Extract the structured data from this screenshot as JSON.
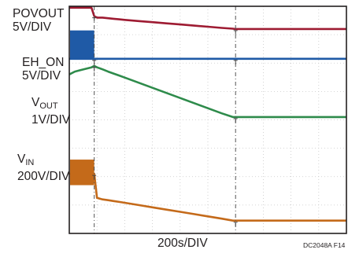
{
  "chart_data": {
    "type": "line",
    "xlabel": "200s/DIV",
    "figure_id": "DC2048A F14",
    "grid": true,
    "x_divisions": 10,
    "y_divisions": 8,
    "x": [
      0,
      0.2,
      0.4,
      0.6,
      0.8,
      0.9,
      1.0,
      1.2,
      1.4,
      1.6,
      1.8,
      2.0,
      2.5,
      3.0,
      3.5,
      4.0,
      4.5,
      5.0,
      5.5,
      5.9,
      6.0,
      6.5,
      7.0,
      7.5,
      8.0,
      8.5,
      9.0,
      9.5,
      10.0
    ],
    "series": [
      {
        "name": "POVOUT",
        "scale_label": "5V/DIV",
        "color": "#9e1b32",
        "values": [
          7.95,
          7.95,
          7.95,
          7.95,
          7.95,
          7.65,
          7.6,
          7.6,
          7.58,
          7.56,
          7.54,
          7.52,
          7.48,
          7.44,
          7.4,
          7.36,
          7.32,
          7.28,
          7.24,
          7.21,
          7.2,
          7.2,
          7.2,
          7.2,
          7.2,
          7.2,
          7.2,
          7.2,
          7.2
        ]
      },
      {
        "name": "EH_ON",
        "scale_label": "5V/DIV",
        "color": "#1f5aa6",
        "values": [
          6.15,
          6.15,
          6.15,
          6.15,
          6.15,
          6.15,
          6.15,
          6.15,
          6.15,
          6.15,
          6.15,
          6.15,
          6.15,
          6.15,
          6.15,
          6.15,
          6.15,
          6.15,
          6.15,
          6.15,
          6.15,
          6.15,
          6.15,
          6.15,
          6.15,
          6.15,
          6.15,
          6.15,
          6.15
        ],
        "burst": {
          "x": [
            0,
            0.9
          ],
          "y": [
            6.15,
            7.15
          ]
        }
      },
      {
        "name": "V_OUT",
        "scale_label": "1V/DIV",
        "color": "#2e8b4b",
        "values": [
          5.6,
          5.7,
          5.75,
          5.8,
          5.85,
          5.9,
          5.85,
          5.78,
          5.7,
          5.63,
          5.56,
          5.49,
          5.31,
          5.13,
          4.95,
          4.77,
          4.59,
          4.41,
          4.23,
          4.1,
          4.1,
          4.1,
          4.1,
          4.1,
          4.1,
          4.1,
          4.1,
          4.1,
          4.1
        ]
      },
      {
        "name": "V_IN",
        "scale_label": "200V/DIV",
        "color": "#c46a1a",
        "values": [
          2.1,
          2.1,
          2.1,
          2.1,
          2.1,
          2.1,
          1.25,
          1.2,
          1.17,
          1.14,
          1.11,
          1.08,
          1.0,
          0.92,
          0.84,
          0.76,
          0.68,
          0.6,
          0.52,
          0.45,
          0.45,
          0.45,
          0.45,
          0.45,
          0.45,
          0.45,
          0.45,
          0.45,
          0.45
        ],
        "burst": {
          "x": [
            0,
            0.9
          ],
          "y": [
            1.7,
            2.6
          ]
        }
      }
    ],
    "cursors_x": [
      0.9,
      6.0
    ]
  },
  "labels": {
    "povout_name": "POVOUT",
    "povout_scale": "5V/DIV",
    "ehon_name": "EH_ON",
    "ehon_scale": "5V/DIV",
    "vout_main": "V",
    "vout_sub": "OUT",
    "vout_scale": "1V/DIV",
    "vin_main": "V",
    "vin_sub": "IN",
    "vin_scale": "200V/DIV"
  }
}
